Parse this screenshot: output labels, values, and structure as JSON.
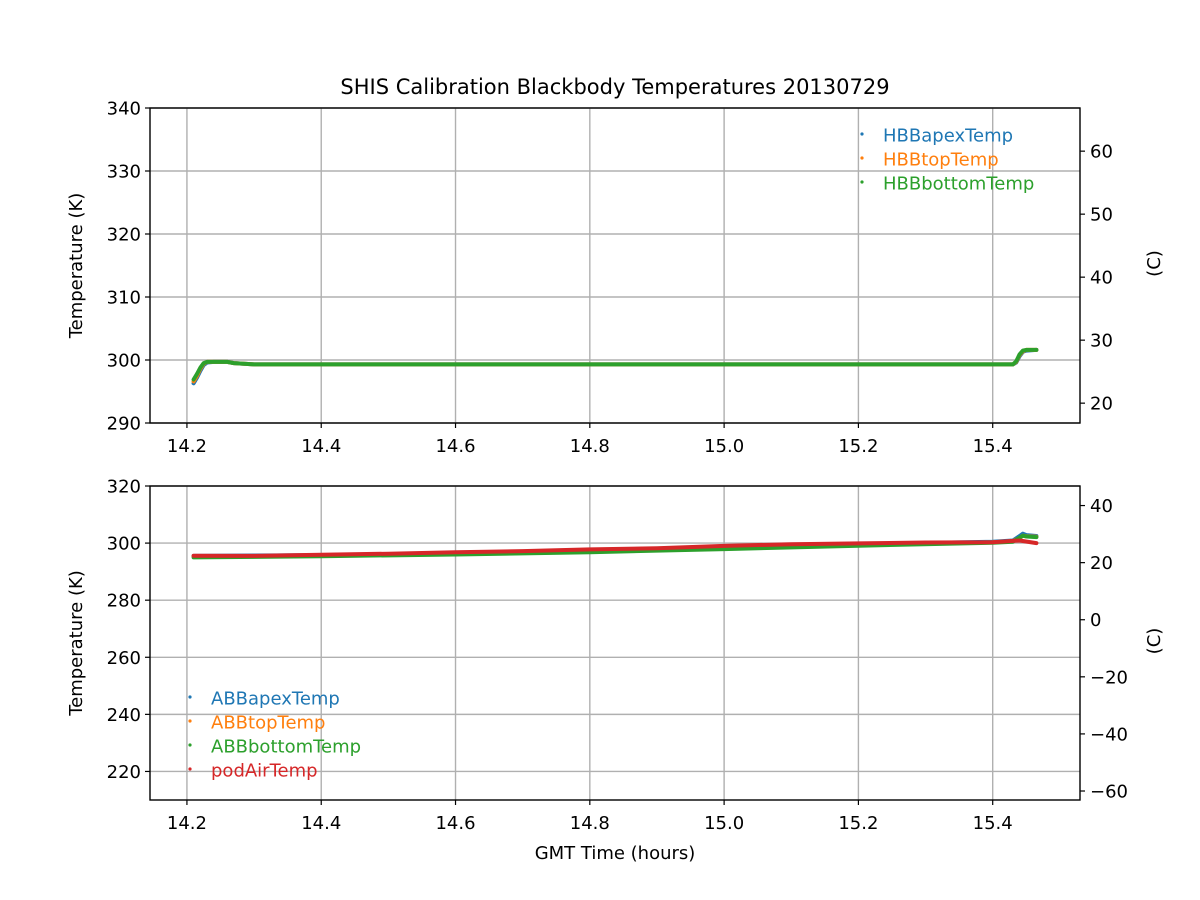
{
  "figure": {
    "title": "SHIS Calibration Blackbody Temperatures 20130729"
  },
  "colors": {
    "blue": "#1f77b4",
    "orange": "#ff7f0e",
    "green": "#2ca02c",
    "red": "#d62728",
    "grid": "#b0b0b0"
  },
  "chart_data": [
    {
      "type": "scatter",
      "ylabel": "Temperature (K)",
      "ylabel_right": "(C)",
      "xlabel": "",
      "xlim": [
        14.145,
        15.53
      ],
      "ylim": [
        290,
        340
      ],
      "xticks": [
        14.2,
        14.4,
        14.6,
        14.8,
        15.0,
        15.2,
        15.4
      ],
      "xtick_labels": [
        "14.2",
        "14.4",
        "14.6",
        "14.8",
        "15.0",
        "15.2",
        "15.4"
      ],
      "yticks": [
        290,
        300,
        310,
        320,
        330,
        340
      ],
      "ytick_labels": [
        "290",
        "300",
        "310",
        "320",
        "330",
        "340"
      ],
      "yticks_right": [
        20,
        30,
        40,
        50,
        60
      ],
      "ytick_labels_right": [
        "20",
        "30",
        "40",
        "50",
        "60"
      ],
      "right_offset": -273.15,
      "grid": true,
      "legend_position": "top-right",
      "series": [
        {
          "name": "HBBapexTemp",
          "color": "#1f77b4",
          "x": [
            14.21,
            14.215,
            14.22,
            14.225,
            14.23,
            14.24,
            14.26,
            14.27,
            14.3,
            14.6,
            15.0,
            15.4,
            15.43,
            15.435,
            15.44,
            15.445,
            15.45,
            15.465
          ],
          "y": [
            296.3,
            297.2,
            298.3,
            299.2,
            299.6,
            299.7,
            299.7,
            299.5,
            299.3,
            299.3,
            299.3,
            299.3,
            299.3,
            299.6,
            300.6,
            301.3,
            301.5,
            301.6
          ]
        },
        {
          "name": "HBBtopTemp",
          "color": "#ff7f0e",
          "x": [
            14.21,
            14.215,
            14.22,
            14.225,
            14.23,
            14.24,
            14.26,
            14.27,
            14.3,
            14.6,
            15.0,
            15.4,
            15.43,
            15.435,
            15.44,
            15.445,
            15.45,
            15.465
          ],
          "y": [
            296.6,
            297.5,
            298.6,
            299.4,
            299.7,
            299.7,
            299.7,
            299.5,
            299.3,
            299.3,
            299.3,
            299.3,
            299.3,
            299.7,
            300.8,
            301.4,
            301.6,
            301.6
          ]
        },
        {
          "name": "HBBbottomTemp",
          "color": "#2ca02c",
          "x": [
            14.21,
            14.215,
            14.22,
            14.225,
            14.23,
            14.24,
            14.26,
            14.27,
            14.3,
            14.6,
            15.0,
            15.4,
            15.43,
            15.435,
            15.44,
            15.445,
            15.45,
            15.465
          ],
          "y": [
            296.9,
            297.8,
            298.8,
            299.5,
            299.7,
            299.7,
            299.7,
            299.5,
            299.3,
            299.3,
            299.3,
            299.3,
            299.3,
            299.8,
            300.9,
            301.5,
            301.6,
            301.6
          ]
        }
      ]
    },
    {
      "type": "scatter",
      "ylabel": "Temperature (K)",
      "ylabel_right": "(C)",
      "xlabel": "GMT Time (hours)",
      "xlim": [
        14.145,
        15.53
      ],
      "ylim": [
        210,
        320
      ],
      "xticks": [
        14.2,
        14.4,
        14.6,
        14.8,
        15.0,
        15.2,
        15.4
      ],
      "xtick_labels": [
        "14.2",
        "14.4",
        "14.6",
        "14.8",
        "15.0",
        "15.2",
        "15.4"
      ],
      "yticks": [
        220,
        240,
        260,
        280,
        300,
        320
      ],
      "ytick_labels": [
        "220",
        "240",
        "260",
        "280",
        "300",
        "320"
      ],
      "yticks_right": [
        -60,
        -40,
        -20,
        0,
        20,
        40
      ],
      "ytick_labels_right": [
        "−60",
        "−40",
        "−20",
        "0",
        "20",
        "40"
      ],
      "right_offset": -273.15,
      "grid": true,
      "legend_position": "lower-left",
      "series": [
        {
          "name": "ABBapexTemp",
          "color": "#1f77b4",
          "x": [
            14.21,
            14.4,
            14.6,
            14.8,
            15.0,
            15.2,
            15.4,
            15.43,
            15.44,
            15.445,
            15.45,
            15.465
          ],
          "y": [
            295.5,
            295.8,
            296.5,
            297.3,
            298.5,
            299.6,
            300.5,
            300.9,
            302.5,
            303.3,
            302.8,
            302.5
          ]
        },
        {
          "name": "ABBtopTemp",
          "color": "#ff7f0e",
          "x": [
            14.21,
            14.4,
            14.6,
            14.8,
            15.0,
            15.2,
            15.4,
            15.43,
            15.44,
            15.445,
            15.45,
            15.465
          ],
          "y": [
            295.3,
            295.6,
            296.3,
            297.1,
            298.3,
            299.4,
            300.3,
            300.7,
            301.8,
            302.6,
            302.4,
            302.2
          ]
        },
        {
          "name": "ABBbottomTemp",
          "color": "#2ca02c",
          "x": [
            14.21,
            14.4,
            14.6,
            14.8,
            15.0,
            15.2,
            15.4,
            15.43,
            15.44,
            15.445,
            15.45,
            15.465
          ],
          "y": [
            295.0,
            295.4,
            296.0,
            296.8,
            297.9,
            299.1,
            300.1,
            300.5,
            301.9,
            302.6,
            302.3,
            302.1
          ]
        },
        {
          "name": "podAirTemp",
          "color": "#d62728",
          "x": [
            14.21,
            14.3,
            14.4,
            14.5,
            14.6,
            14.7,
            14.8,
            14.9,
            15.0,
            15.1,
            15.2,
            15.3,
            15.4,
            15.44,
            15.465
          ],
          "y": [
            295.6,
            295.5,
            295.9,
            296.3,
            296.8,
            297.2,
            297.8,
            298.2,
            299.0,
            299.6,
            299.9,
            300.2,
            300.3,
            300.9,
            300.0
          ]
        }
      ]
    }
  ]
}
